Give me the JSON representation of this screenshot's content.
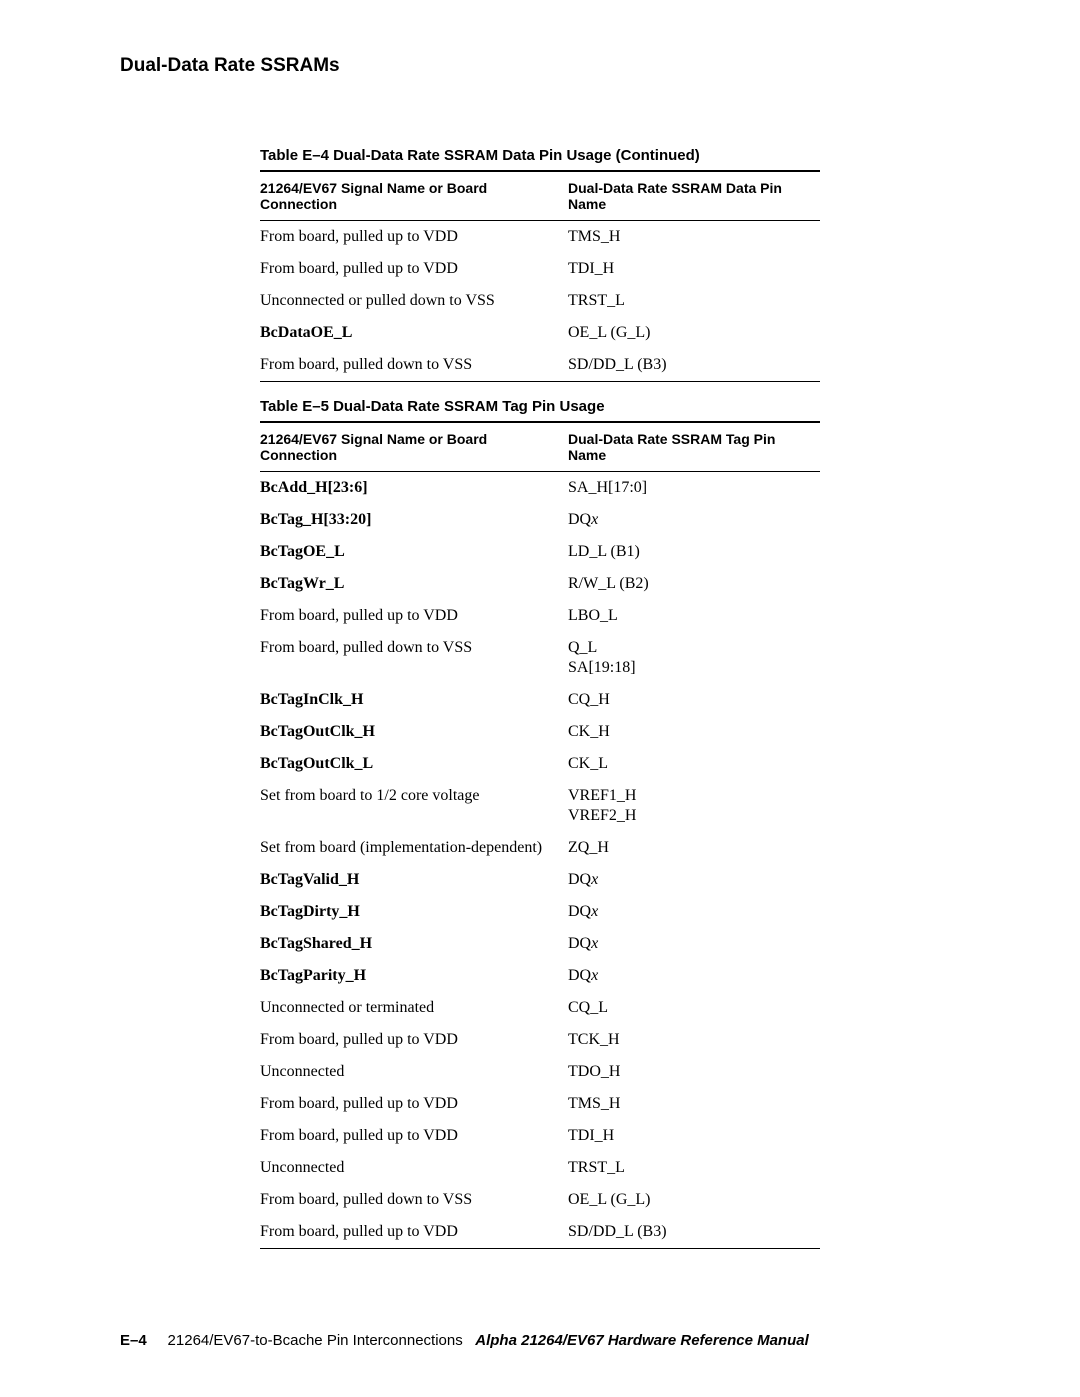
{
  "section_title": "Dual-Data Rate SSRAMs",
  "table_e4": {
    "caption": "Table E–4  Dual-Data Rate SSRAM Data Pin Usage  (Continued)",
    "head_left": "21264/EV67 Signal Name or Board Connection",
    "head_right": "Dual-Data Rate SSRAM Data Pin Name",
    "rows": [
      {
        "l": "From board, pulled up to VDD",
        "r": "TMS_H",
        "b": false
      },
      {
        "l": "From board, pulled up to VDD",
        "r": "TDI_H",
        "b": false
      },
      {
        "l": "Unconnected or pulled down to VSS",
        "r": "TRST_L",
        "b": false
      },
      {
        "l": "BcDataOE_L",
        "r": "OE_L (G_L)",
        "b": true
      },
      {
        "l": "From board, pulled down to VSS",
        "r": "SD/DD_L (B3)",
        "b": false
      }
    ]
  },
  "table_e5": {
    "caption": "Table E–5  Dual-Data Rate SSRAM Tag Pin Usage",
    "head_left": "21264/EV67 Signal Name or Board Connection",
    "head_right": "Dual-Data Rate SSRAM Tag Pin Name",
    "rows": [
      {
        "l": "BcAdd_H[23:6]",
        "r": "SA_H[17:0]",
        "b": true
      },
      {
        "l": "BcTag_H[33:20]",
        "r": "DQx",
        "b": true,
        "ri": true
      },
      {
        "l": "BcTagOE_L",
        "r": "LD_L (B1)",
        "b": true
      },
      {
        "l": "BcTagWr_L",
        "r": "R/W_L (B2)",
        "b": true
      },
      {
        "l": "From board, pulled up to VDD",
        "r": "LBO_L",
        "b": false
      },
      {
        "l": "From board, pulled down to VSS",
        "r": "Q_L\nSA[19:18]",
        "b": false
      },
      {
        "l": "BcTagInClk_H",
        "r": "CQ_H",
        "b": true
      },
      {
        "l": "BcTagOutClk_H",
        "r": "CK_H",
        "b": true
      },
      {
        "l": "BcTagOutClk_L",
        "r": "CK_L",
        "b": true
      },
      {
        "l": "Set from board to 1/2 core voltage",
        "r": "VREF1_H\nVREF2_H",
        "b": false
      },
      {
        "l": "Set from board (implementation-dependent)",
        "r": "ZQ_H",
        "b": false
      },
      {
        "l": "BcTagValid_H",
        "r": "DQx",
        "b": true,
        "ri": true
      },
      {
        "l": "BcTagDirty_H",
        "r": "DQx",
        "b": true,
        "ri": true
      },
      {
        "l": "BcTagShared_H",
        "r": "DQx",
        "b": true,
        "ri": true
      },
      {
        "l": "BcTagParity_H",
        "r": "DQx",
        "b": true,
        "ri": true
      },
      {
        "l": "Unconnected or terminated",
        "r": "CQ_L",
        "b": false
      },
      {
        "l": "From board, pulled up to VDD",
        "r": "TCK_H",
        "b": false
      },
      {
        "l": "Unconnected",
        "r": "TDO_H",
        "b": false
      },
      {
        "l": "From board, pulled up to VDD",
        "r": "TMS_H",
        "b": false
      },
      {
        "l": "From board, pulled up to VDD",
        "r": "TDI_H",
        "b": false
      },
      {
        "l": "Unconnected",
        "r": "TRST_L",
        "b": false
      },
      {
        "l": "From board, pulled down to VSS",
        "r": "OE_L (G_L)",
        "b": false
      },
      {
        "l": "From board, pulled up to VDD",
        "r": "SD/DD_L (B3)",
        "b": false
      }
    ]
  },
  "footer": {
    "page_num": "E–4",
    "section": "21264/EV67-to-Bcache Pin Interconnections",
    "manual": "Alpha 21264/EV67 Hardware Reference Manual"
  }
}
